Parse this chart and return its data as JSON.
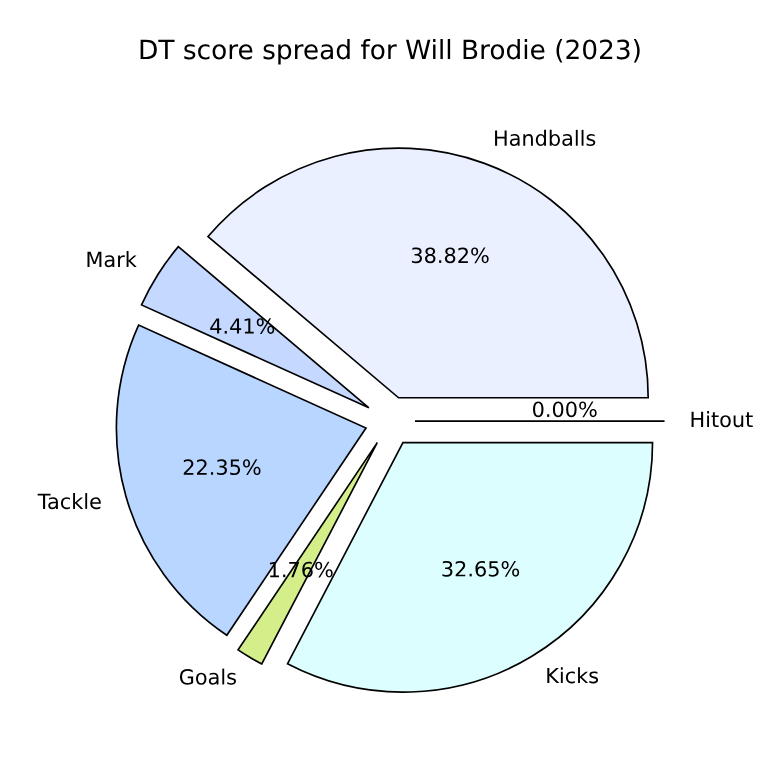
{
  "chart_data": {
    "type": "pie",
    "title": "DT score spread for Will Brodie (2023)",
    "categories": [
      "Hitout",
      "Handballs",
      "Mark",
      "Tackle",
      "Goals",
      "Kicks"
    ],
    "values": [
      0.0,
      38.82,
      4.41,
      22.35,
      1.76,
      32.65
    ],
    "value_labels": [
      "0.00%",
      "38.82%",
      "4.41%",
      "22.35%",
      "1.76%",
      "32.65%"
    ],
    "colors": [
      "#f0f0f0",
      "#eaf0ff",
      "#c5d8ff",
      "#b8d6ff",
      "#d4ee8a",
      "#dcfeff"
    ]
  }
}
